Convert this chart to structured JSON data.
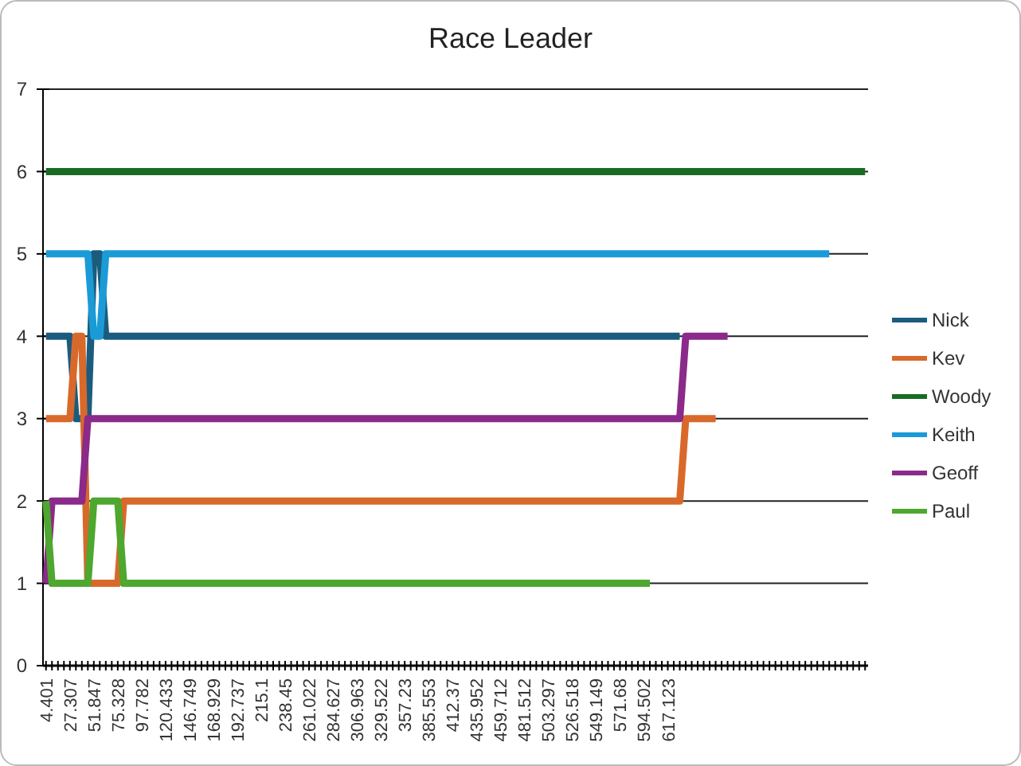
{
  "chart_data": {
    "type": "line",
    "title": "Race Leader",
    "categories": [
      "4.401",
      null,
      null,
      null,
      "27.307",
      null,
      null,
      null,
      "51.847",
      null,
      null,
      null,
      "75.328",
      null,
      null,
      null,
      "97.782",
      null,
      null,
      null,
      "120.433",
      null,
      null,
      null,
      "146.749",
      null,
      null,
      null,
      "168.929",
      null,
      null,
      null,
      "192.737",
      null,
      null,
      null,
      "215.1",
      null,
      null,
      null,
      "238.45",
      null,
      null,
      null,
      "261.022",
      null,
      null,
      null,
      "284.627",
      null,
      null,
      null,
      "306.963",
      null,
      null,
      null,
      "329.522",
      null,
      null,
      null,
      "357.23",
      null,
      null,
      null,
      "385.553",
      null,
      null,
      null,
      "412.37",
      null,
      null,
      null,
      "435.952",
      null,
      null,
      null,
      "459.712",
      null,
      null,
      null,
      "481.512",
      null,
      null,
      null,
      "503.297",
      null,
      null,
      null,
      "526.518",
      null,
      null,
      null,
      "549.149",
      null,
      null,
      null,
      "571.68",
      null,
      null,
      null,
      "594.502",
      null,
      null,
      null,
      "617.123",
      null,
      null,
      null,
      null,
      null,
      null,
      null,
      null,
      null,
      null,
      null,
      null,
      null,
      null,
      null,
      null,
      null,
      null,
      null,
      null,
      null,
      null,
      null,
      null,
      null,
      null,
      null,
      null,
      null,
      null,
      null,
      null,
      null
    ],
    "ylim": [
      0,
      7
    ],
    "yticks": [
      0,
      1,
      2,
      3,
      4,
      5,
      6,
      7
    ],
    "grid": "y",
    "legend": "right",
    "line_style": "solid",
    "series": [
      {
        "name": "Nick",
        "color": "#1b5c7e",
        "values": [
          4,
          4,
          4,
          4,
          4,
          3,
          3,
          3,
          5,
          5,
          4,
          4,
          4,
          4,
          4,
          4,
          4,
          4,
          4,
          4,
          4,
          4,
          4,
          4,
          4,
          4,
          4,
          4,
          4,
          4,
          4,
          4,
          4,
          4,
          4,
          4,
          4,
          4,
          4,
          4,
          4,
          4,
          4,
          4,
          4,
          4,
          4,
          4,
          4,
          4,
          4,
          4,
          4,
          4,
          4,
          4,
          4,
          4,
          4,
          4,
          4,
          4,
          4,
          4,
          4,
          4,
          4,
          4,
          4,
          4,
          4,
          4,
          4,
          4,
          4,
          4,
          4,
          4,
          4,
          4,
          4,
          4,
          4,
          4,
          4,
          4,
          4,
          4,
          4,
          4,
          4,
          4,
          4,
          4,
          4,
          4,
          4,
          4,
          4,
          4,
          4,
          4,
          4,
          4,
          4,
          4,
          4,
          null,
          null,
          null,
          null,
          null,
          null,
          null,
          null,
          null,
          null,
          null,
          null,
          null,
          null,
          null,
          null,
          null,
          null,
          null,
          null,
          null,
          null,
          null,
          null,
          null,
          null,
          null,
          null,
          null,
          null,
          null
        ]
      },
      {
        "name": "Kev",
        "color": "#d9692b",
        "values": [
          3,
          3,
          3,
          3,
          3,
          4,
          4,
          1,
          1,
          1,
          1,
          1,
          1,
          2,
          2,
          2,
          2,
          2,
          2,
          2,
          2,
          2,
          2,
          2,
          2,
          2,
          2,
          2,
          2,
          2,
          2,
          2,
          2,
          2,
          2,
          2,
          2,
          2,
          2,
          2,
          2,
          2,
          2,
          2,
          2,
          2,
          2,
          2,
          2,
          2,
          2,
          2,
          2,
          2,
          2,
          2,
          2,
          2,
          2,
          2,
          2,
          2,
          2,
          2,
          2,
          2,
          2,
          2,
          2,
          2,
          2,
          2,
          2,
          2,
          2,
          2,
          2,
          2,
          2,
          2,
          2,
          2,
          2,
          2,
          2,
          2,
          2,
          2,
          2,
          2,
          2,
          2,
          2,
          2,
          2,
          2,
          2,
          2,
          2,
          2,
          2,
          2,
          2,
          2,
          2,
          2,
          2,
          3,
          3,
          3,
          3,
          3,
          3,
          null,
          null,
          null,
          null,
          null,
          null,
          null,
          null,
          null,
          null,
          null,
          null,
          null,
          null,
          null,
          null,
          null,
          null,
          null,
          null,
          null,
          null,
          null,
          null,
          null
        ]
      },
      {
        "name": "Woody",
        "color": "#196b24",
        "values": [
          6,
          6,
          6,
          6,
          6,
          6,
          6,
          6,
          6,
          6,
          6,
          6,
          6,
          6,
          6,
          6,
          6,
          6,
          6,
          6,
          6,
          6,
          6,
          6,
          6,
          6,
          6,
          6,
          6,
          6,
          6,
          6,
          6,
          6,
          6,
          6,
          6,
          6,
          6,
          6,
          6,
          6,
          6,
          6,
          6,
          6,
          6,
          6,
          6,
          6,
          6,
          6,
          6,
          6,
          6,
          6,
          6,
          6,
          6,
          6,
          6,
          6,
          6,
          6,
          6,
          6,
          6,
          6,
          6,
          6,
          6,
          6,
          6,
          6,
          6,
          6,
          6,
          6,
          6,
          6,
          6,
          6,
          6,
          6,
          6,
          6,
          6,
          6,
          6,
          6,
          6,
          6,
          6,
          6,
          6,
          6,
          6,
          6,
          6,
          6,
          6,
          6,
          6,
          6,
          6,
          6,
          6,
          6,
          6,
          6,
          6,
          6,
          6,
          6,
          6,
          6,
          6,
          6,
          6,
          6,
          6,
          6,
          6,
          6,
          6,
          6,
          6,
          6,
          6,
          6,
          6,
          6,
          6,
          6,
          6,
          6,
          6,
          6
        ]
      },
      {
        "name": "Keith",
        "color": "#1a9bd7",
        "values": [
          5,
          5,
          5,
          5,
          5,
          5,
          5,
          5,
          4,
          4,
          5,
          5,
          5,
          5,
          5,
          5,
          5,
          5,
          5,
          5,
          5,
          5,
          5,
          5,
          5,
          5,
          5,
          5,
          5,
          5,
          5,
          5,
          5,
          5,
          5,
          5,
          5,
          5,
          5,
          5,
          5,
          5,
          5,
          5,
          5,
          5,
          5,
          5,
          5,
          5,
          5,
          5,
          5,
          5,
          5,
          5,
          5,
          5,
          5,
          5,
          5,
          5,
          5,
          5,
          5,
          5,
          5,
          5,
          5,
          5,
          5,
          5,
          5,
          5,
          5,
          5,
          5,
          5,
          5,
          5,
          5,
          5,
          5,
          5,
          5,
          5,
          5,
          5,
          5,
          5,
          5,
          5,
          5,
          5,
          5,
          5,
          5,
          5,
          5,
          5,
          5,
          5,
          5,
          5,
          5,
          5,
          5,
          5,
          5,
          5,
          5,
          5,
          5,
          5,
          5,
          5,
          5,
          5,
          5,
          5,
          5,
          5,
          5,
          5,
          5,
          5,
          5,
          5,
          5,
          5,
          5,
          5,
          null,
          null,
          null,
          null,
          null,
          null
        ]
      },
      {
        "name": "Geoff",
        "color": "#8b2a8a",
        "values": [
          1,
          2,
          2,
          2,
          2,
          2,
          2,
          3,
          3,
          3,
          3,
          3,
          3,
          3,
          3,
          3,
          3,
          3,
          3,
          3,
          3,
          3,
          3,
          3,
          3,
          3,
          3,
          3,
          3,
          3,
          3,
          3,
          3,
          3,
          3,
          3,
          3,
          3,
          3,
          3,
          3,
          3,
          3,
          3,
          3,
          3,
          3,
          3,
          3,
          3,
          3,
          3,
          3,
          3,
          3,
          3,
          3,
          3,
          3,
          3,
          3,
          3,
          3,
          3,
          3,
          3,
          3,
          3,
          3,
          3,
          3,
          3,
          3,
          3,
          3,
          3,
          3,
          3,
          3,
          3,
          3,
          3,
          3,
          3,
          3,
          3,
          3,
          3,
          3,
          3,
          3,
          3,
          3,
          3,
          3,
          3,
          3,
          3,
          3,
          3,
          3,
          3,
          3,
          3,
          3,
          3,
          3,
          4,
          4,
          4,
          4,
          4,
          4,
          4,
          4,
          null,
          null,
          null,
          null,
          null,
          null,
          null,
          null,
          null,
          null,
          null,
          null,
          null,
          null,
          null,
          null,
          null,
          null,
          null,
          null,
          null,
          null,
          null
        ]
      },
      {
        "name": "Paul",
        "color": "#4ea72e",
        "values": [
          2,
          1,
          1,
          1,
          1,
          1,
          1,
          1,
          2,
          2,
          2,
          2,
          2,
          1,
          1,
          1,
          1,
          1,
          1,
          1,
          1,
          1,
          1,
          1,
          1,
          1,
          1,
          1,
          1,
          1,
          1,
          1,
          1,
          1,
          1,
          1,
          1,
          1,
          1,
          1,
          1,
          1,
          1,
          1,
          1,
          1,
          1,
          1,
          1,
          1,
          1,
          1,
          1,
          1,
          1,
          1,
          1,
          1,
          1,
          1,
          1,
          1,
          1,
          1,
          1,
          1,
          1,
          1,
          1,
          1,
          1,
          1,
          1,
          1,
          1,
          1,
          1,
          1,
          1,
          1,
          1,
          1,
          1,
          1,
          1,
          1,
          1,
          1,
          1,
          1,
          1,
          1,
          1,
          1,
          1,
          1,
          1,
          1,
          1,
          1,
          1,
          1,
          null,
          null,
          null,
          null,
          null,
          null,
          null,
          null,
          null,
          null,
          null,
          null,
          null,
          null,
          null,
          null,
          null,
          null,
          null,
          null,
          null,
          null,
          null,
          null,
          null,
          null,
          null,
          null,
          null,
          null,
          null,
          null,
          null,
          null,
          null,
          null
        ]
      }
    ]
  }
}
